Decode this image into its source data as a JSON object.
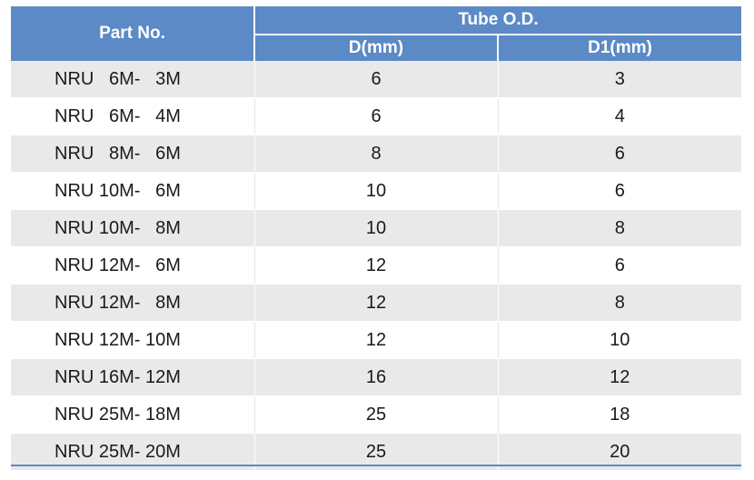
{
  "header": {
    "part_no": "Part No.",
    "group": "Tube O.D.",
    "d": "D(mm)",
    "d1": "D1(mm)"
  },
  "rows": [
    {
      "part": "NRU   6M-   3M",
      "d": "6",
      "d1": "3"
    },
    {
      "part": "NRU   6M-   4M",
      "d": "6",
      "d1": "4"
    },
    {
      "part": "NRU   8M-   6M",
      "d": "8",
      "d1": "6"
    },
    {
      "part": "NRU 10M-   6M",
      "d": "10",
      "d1": "6"
    },
    {
      "part": "NRU 10M-   8M",
      "d": "10",
      "d1": "8"
    },
    {
      "part": "NRU 12M-   6M",
      "d": "12",
      "d1": "6"
    },
    {
      "part": "NRU 12M-   8M",
      "d": "12",
      "d1": "8"
    },
    {
      "part": "NRU 12M- 10M",
      "d": "12",
      "d1": "10"
    },
    {
      "part": "NRU 16M- 12M",
      "d": "16",
      "d1": "12"
    },
    {
      "part": "NRU 25M- 18M",
      "d": "25",
      "d1": "18"
    },
    {
      "part": "NRU 25M- 20M",
      "d": "25",
      "d1": "20"
    }
  ],
  "colors": {
    "header_bg": "#5b8ac6",
    "stripe": "#e9e9e9"
  }
}
